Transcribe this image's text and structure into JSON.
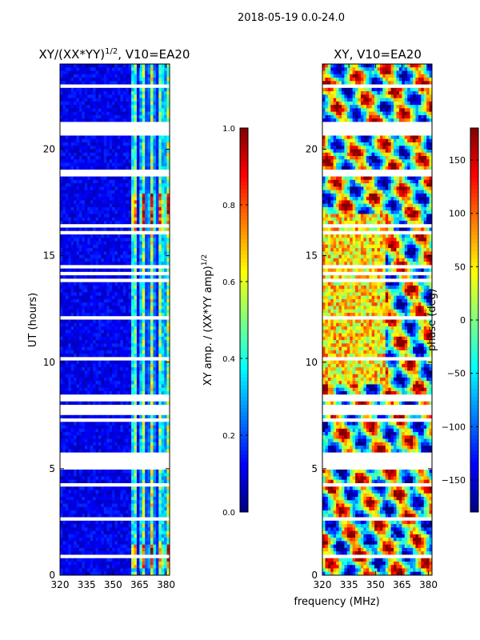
{
  "figure_title": "2018-05-19 0.0-24.0",
  "chart_data": [
    {
      "type": "heatmap",
      "title_main": "XY/(XX*YY)",
      "title_sup": "1/2",
      "title_rest": ", V10=EA20",
      "xlabel": "frequency (MHz)",
      "ylabel": "UT (hours)",
      "xlim": [
        320,
        382
      ],
      "ylim": [
        0,
        24
      ],
      "xticks": [
        320,
        335,
        350,
        365,
        380
      ],
      "yticks": [
        0,
        5,
        10,
        15,
        20
      ],
      "colormap": "jet",
      "colorbar": {
        "label_main": "XY amp. / (XX*YY amp)",
        "label_sup": "1/2",
        "range": [
          0.0,
          1.0
        ],
        "ticks": [
          "0.0",
          "0.2",
          "0.4",
          "0.6",
          "0.8",
          "1.0"
        ],
        "tick_values": [
          0.0,
          0.2,
          0.4,
          0.6,
          0.8,
          1.0
        ]
      },
      "high_amplitude_channels_mhz": [
        362,
        367,
        372,
        377,
        381
      ],
      "flagged_hours": [
        [
          4.9,
          5.8
        ],
        [
          7.75,
          7.95
        ],
        [
          8.1,
          8.4
        ],
        [
          20.6,
          21.3
        ]
      ]
    },
    {
      "type": "heatmap",
      "title": "XY, V10=EA20",
      "xlabel": "frequency (MHz)",
      "xlim": [
        320,
        382
      ],
      "ylim": [
        0,
        24
      ],
      "xticks": [
        320,
        335,
        350,
        365,
        380
      ],
      "yticks": [
        0,
        5,
        10,
        15,
        20
      ],
      "colormap": "jet",
      "colorbar": {
        "label": "phase (deg)",
        "range": [
          -180,
          180
        ],
        "ticks": [
          "150",
          "100",
          "50",
          "0",
          "−50",
          "−100",
          "−150"
        ],
        "tick_values": [
          150,
          100,
          50,
          0,
          -50,
          -100,
          -150
        ]
      },
      "flagged_hours": [
        [
          4.9,
          5.8
        ],
        [
          7.75,
          7.95
        ],
        [
          8.1,
          8.4
        ],
        [
          20.6,
          21.3
        ]
      ]
    }
  ],
  "colors": {
    "jet_low": "#00007f",
    "jet_high": "#7f0000",
    "gap": "#ffffff"
  }
}
